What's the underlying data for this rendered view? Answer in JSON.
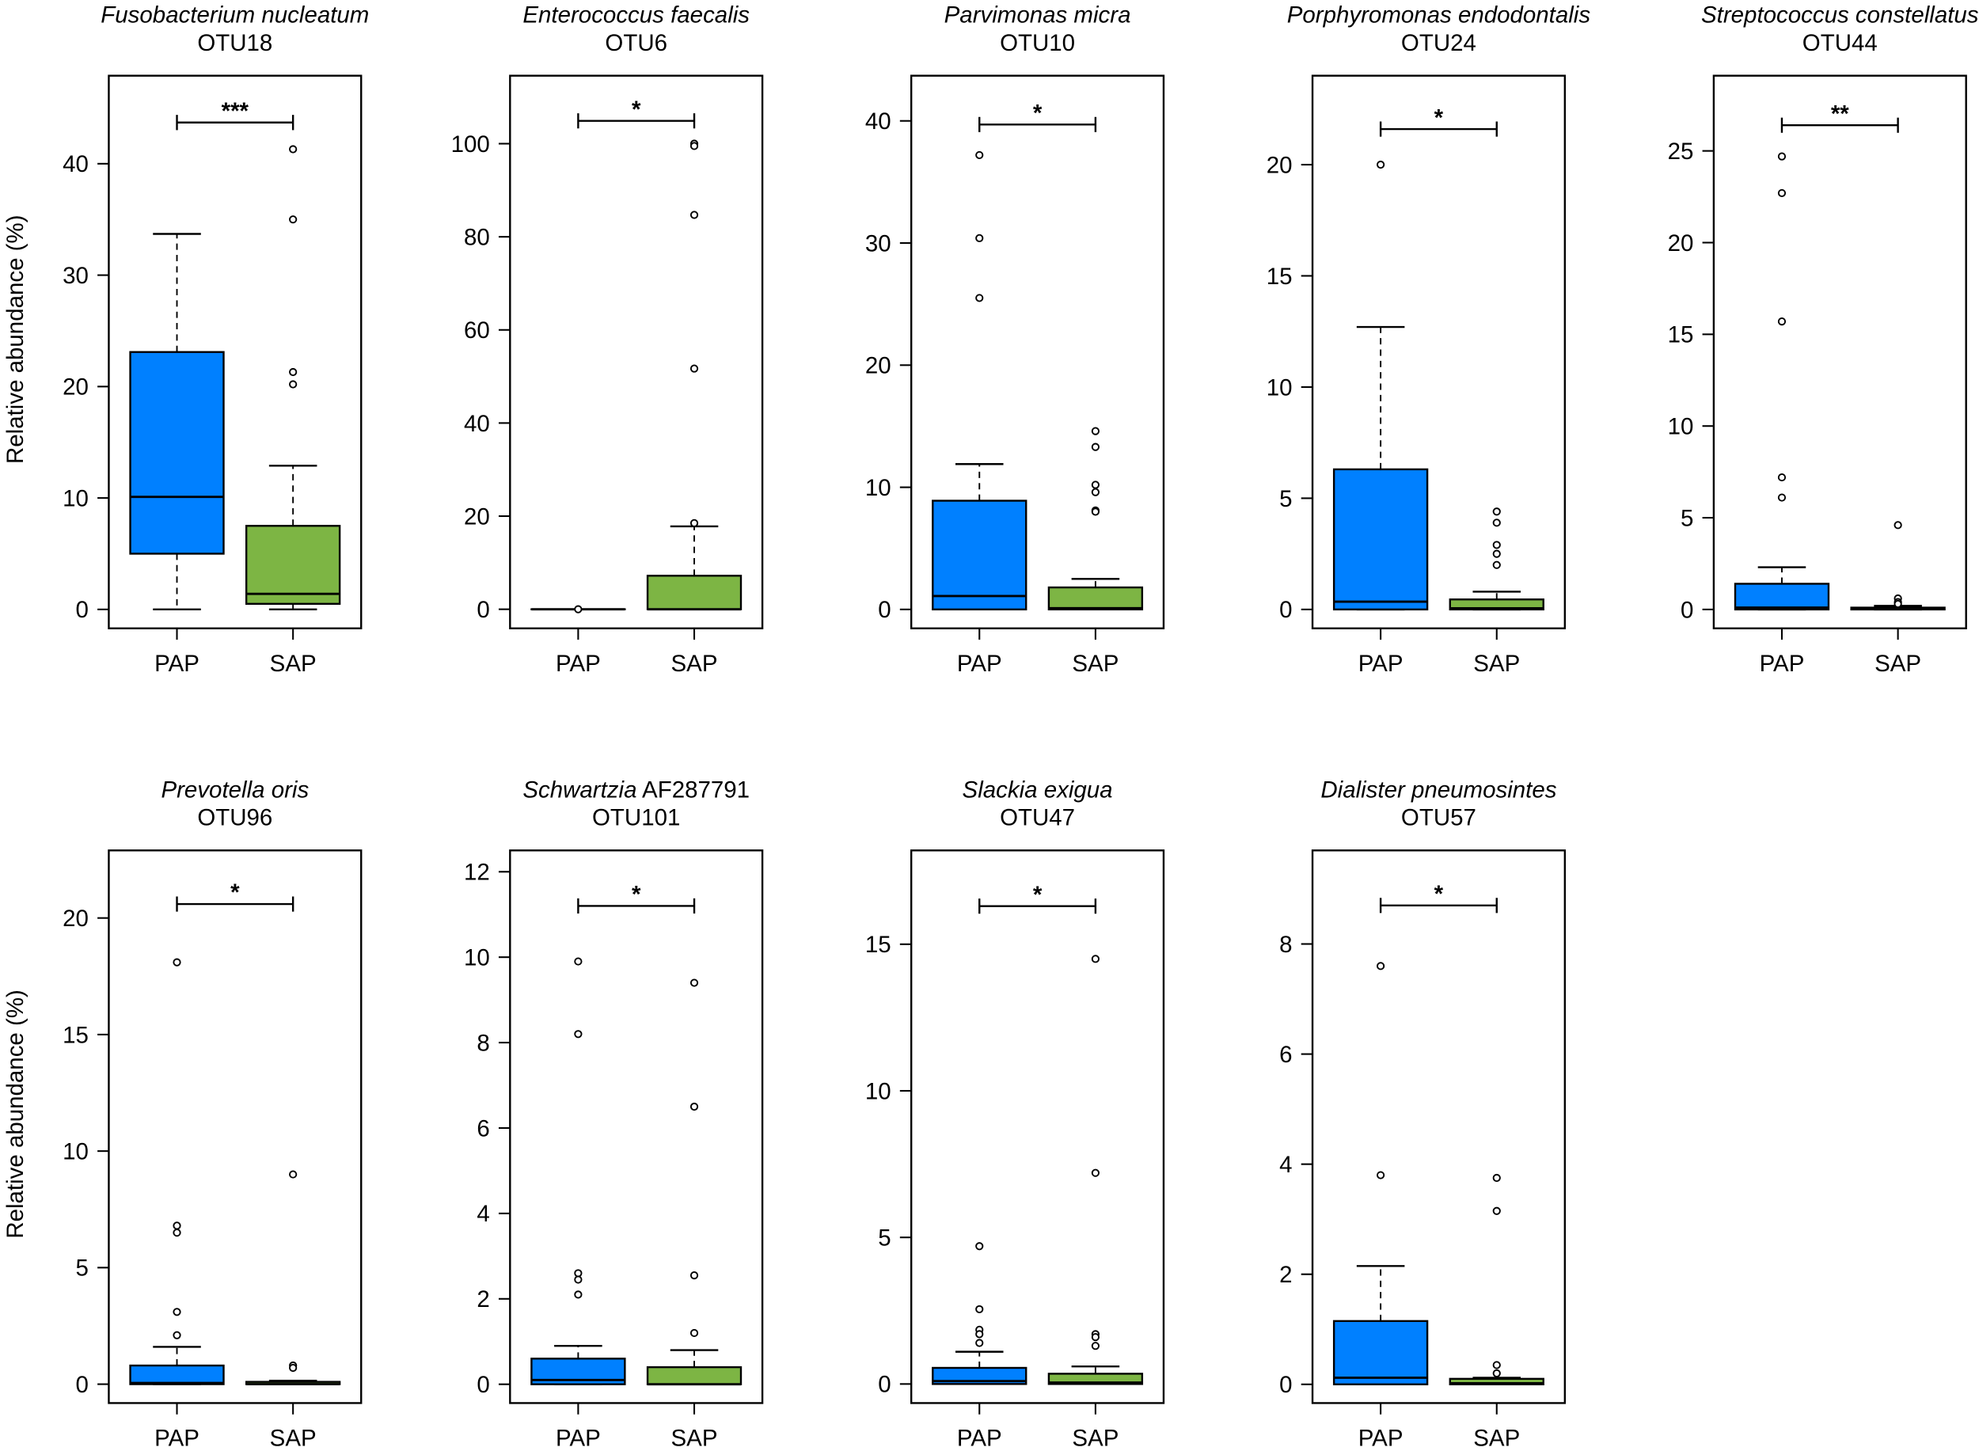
{
  "colors": {
    "PAP": "#0080FF",
    "SAP": "#7DB544"
  },
  "chart_data": {
    "type": "box",
    "ylabel": "Relative abundance (%)",
    "groups": [
      "PAP",
      "SAP"
    ],
    "panels": [
      {
        "species": "Fusobacterium nucleatum",
        "species_extra": "",
        "otu": "OTU18",
        "sig": "***",
        "bracket": 43.7,
        "ylim": [
          -1.7,
          47.9
        ],
        "ticks": [
          0,
          10,
          20,
          30,
          40
        ],
        "boxes": [
          {
            "lo": 0,
            "q1": 5.0,
            "med": 10.1,
            "q3": 23.1,
            "hi": 33.7,
            "out": []
          },
          {
            "lo": 0,
            "q1": 0.5,
            "med": 1.4,
            "q3": 7.5,
            "hi": 12.9,
            "out": [
              41.3,
              35.0,
              21.3,
              20.2
            ]
          }
        ]
      },
      {
        "species": "Enterococcus faecalis",
        "species_extra": "",
        "otu": "OTU6",
        "sig": "*",
        "bracket": 104.9,
        "ylim": [
          -4.1,
          114.6
        ],
        "ticks": [
          0,
          20,
          40,
          60,
          80,
          100
        ],
        "boxes": [
          {
            "lo": 0,
            "q1": 0,
            "med": 0,
            "q3": 0,
            "hi": 0,
            "out": [
              0
            ]
          },
          {
            "lo": 0,
            "q1": 0,
            "med": 0,
            "q3": 7.2,
            "hi": 17.8,
            "out": [
              100,
              99.5,
              84.7,
              51.7,
              18.5
            ]
          }
        ]
      },
      {
        "species": "Parvimonas micra",
        "species_extra": "",
        "otu": "OTU10",
        "sig": "*",
        "bracket": 39.7,
        "ylim": [
          -1.55,
          43.7
        ],
        "ticks": [
          0,
          10,
          20,
          30,
          40
        ],
        "boxes": [
          {
            "lo": 0,
            "q1": 0,
            "med": 1.1,
            "q3": 8.9,
            "hi": 11.9,
            "out": [
              37.2,
              30.4,
              25.5
            ]
          },
          {
            "lo": 0,
            "q1": 0,
            "med": 0.1,
            "q3": 1.8,
            "hi": 2.5,
            "out": [
              14.6,
              13.3,
              10.2,
              9.6,
              8.1,
              8.0
            ]
          }
        ]
      },
      {
        "species": "Porphyromonas endodontalis",
        "species_extra": "",
        "otu": "OTU24",
        "sig": "*",
        "bracket": 21.6,
        "ylim": [
          -0.85,
          24.0
        ],
        "ticks": [
          0,
          5,
          10,
          15,
          20
        ],
        "boxes": [
          {
            "lo": 0,
            "q1": 0,
            "med": 0.35,
            "q3": 6.3,
            "hi": 12.7,
            "out": [
              20.0
            ]
          },
          {
            "lo": 0,
            "q1": 0,
            "med": 0.05,
            "q3": 0.45,
            "hi": 0.8,
            "out": [
              4.4,
              3.9,
              2.9,
              2.5,
              2.0
            ]
          }
        ]
      },
      {
        "species": "Streptococcus constellatus",
        "species_extra": "",
        "otu": "OTU44",
        "sig": "**",
        "bracket": 26.4,
        "ylim": [
          -1.03,
          29.1
        ],
        "ticks": [
          0,
          5,
          10,
          15,
          20,
          25
        ],
        "boxes": [
          {
            "lo": 0,
            "q1": 0,
            "med": 0.1,
            "q3": 1.4,
            "hi": 2.3,
            "out": [
              24.7,
              22.7,
              15.7,
              7.2,
              6.1
            ]
          },
          {
            "lo": 0,
            "q1": 0,
            "med": 0.02,
            "q3": 0.1,
            "hi": 0.2,
            "out": [
              4.6,
              0.6,
              0.4,
              0.3
            ]
          }
        ]
      },
      {
        "species": "Prevotella oris",
        "species_extra": "",
        "otu": "OTU96",
        "sig": "*",
        "bracket": 20.6,
        "ylim": [
          -0.81,
          22.9
        ],
        "ticks": [
          0,
          5,
          10,
          15,
          20
        ],
        "boxes": [
          {
            "lo": 0,
            "q1": 0,
            "med": 0.05,
            "q3": 0.8,
            "hi": 1.6,
            "out": [
              18.1,
              6.8,
              6.5,
              3.1,
              2.1
            ]
          },
          {
            "lo": 0,
            "q1": 0,
            "med": 0,
            "q3": 0.1,
            "hi": 0.15,
            "out": [
              9.0,
              0.8,
              0.7
            ]
          }
        ]
      },
      {
        "species": "Schwartzia",
        "species_extra": " AF287791",
        "otu": "OTU101",
        "sig": "*",
        "bracket": 11.2,
        "ylim": [
          -0.44,
          12.5
        ],
        "ticks": [
          0,
          2,
          4,
          6,
          8,
          10,
          12
        ],
        "boxes": [
          {
            "lo": 0,
            "q1": 0,
            "med": 0.1,
            "q3": 0.6,
            "hi": 0.9,
            "out": [
              9.9,
              8.2,
              2.6,
              2.45,
              2.1
            ]
          },
          {
            "lo": 0,
            "q1": 0,
            "med": 0,
            "q3": 0.4,
            "hi": 0.8,
            "out": [
              9.4,
              6.5,
              2.55,
              1.2
            ]
          }
        ]
      },
      {
        "species": "Slackia exigua",
        "species_extra": "",
        "otu": "OTU47",
        "sig": "*",
        "bracket": 16.3,
        "ylim": [
          -0.65,
          18.2
        ],
        "ticks": [
          0,
          5,
          10,
          15
        ],
        "boxes": [
          {
            "lo": 0,
            "q1": 0,
            "med": 0.1,
            "q3": 0.55,
            "hi": 1.1,
            "out": [
              4.7,
              2.55,
              1.85,
              1.7,
              1.4
            ]
          },
          {
            "lo": 0,
            "q1": 0,
            "med": 0.05,
            "q3": 0.35,
            "hi": 0.6,
            "out": [
              14.5,
              7.2,
              1.7,
              1.6,
              1.3
            ]
          }
        ]
      },
      {
        "species": "Dialister pneumosintes",
        "species_extra": "",
        "otu": "OTU57",
        "sig": "*",
        "bracket": 8.7,
        "ylim": [
          -0.34,
          9.7
        ],
        "ticks": [
          0,
          2,
          4,
          6,
          8
        ],
        "boxes": [
          {
            "lo": 0,
            "q1": 0,
            "med": 0.12,
            "q3": 1.15,
            "hi": 2.15,
            "out": [
              7.6,
              3.8
            ]
          },
          {
            "lo": 0,
            "q1": 0,
            "med": 0.02,
            "q3": 0.1,
            "hi": 0.12,
            "out": [
              3.75,
              3.15,
              0.35,
              0.2
            ]
          }
        ]
      }
    ]
  }
}
